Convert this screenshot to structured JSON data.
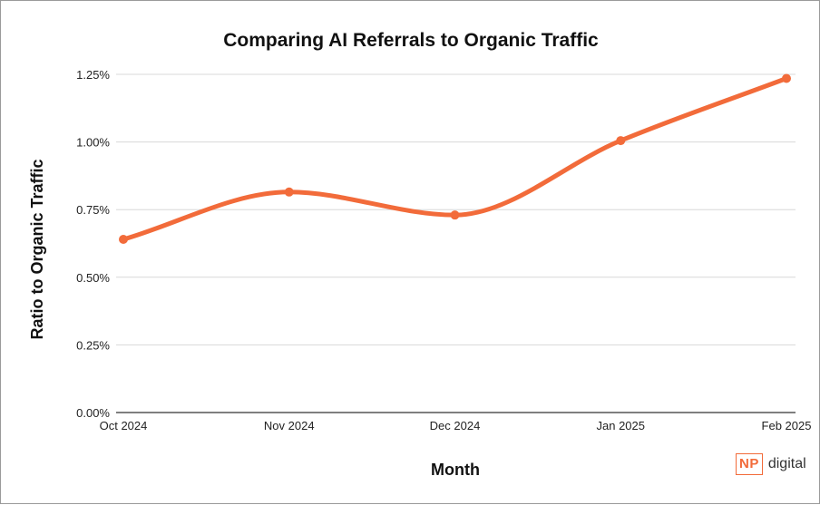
{
  "chart_data": {
    "type": "line",
    "title": "Comparing AI Referrals to Organic Traffic",
    "xlabel": "Month",
    "ylabel": "Ratio to Organic Traffic",
    "categories": [
      "Oct 2024",
      "Nov 2024",
      "Dec 2024",
      "Jan 2025",
      "Feb 2025"
    ],
    "series": [
      {
        "values": [
          0.64,
          0.815,
          0.73,
          1.005,
          1.235
        ]
      }
    ],
    "ylim": [
      0,
      1.25
    ],
    "yticks": [
      0,
      0.25,
      0.5,
      0.75,
      1.0,
      1.25
    ],
    "ytick_labels": [
      "0.00%",
      "0.25%",
      "0.50%",
      "0.75%",
      "1.00%",
      "1.25%"
    ],
    "y_unit": "%",
    "grid": "horizontal",
    "smooth": true,
    "line_color": "#f26b3a",
    "grid_color": "#d8d8d8"
  },
  "logo": {
    "box_text": "NP",
    "text": "digital",
    "color": "#f26b3a"
  }
}
